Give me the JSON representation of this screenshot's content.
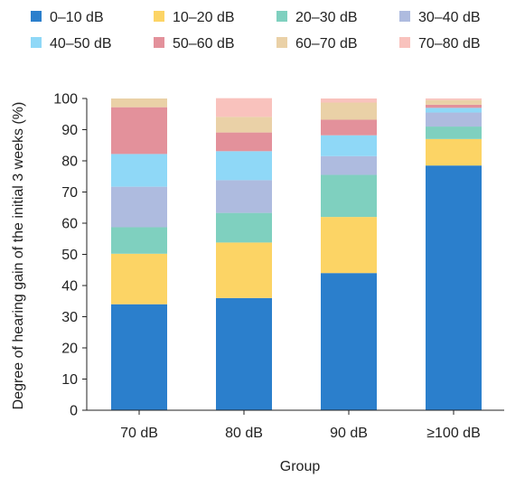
{
  "chart_data": {
    "type": "bar",
    "stacked": true,
    "categories": [
      "70 dB",
      "80 dB",
      "90 dB",
      "≥100 dB"
    ],
    "series": [
      {
        "name": "0–10 dB",
        "color": "#2b7fcc",
        "values": [
          34,
          36,
          44,
          78.5
        ]
      },
      {
        "name": "10–20 dB",
        "color": "#fcd465",
        "values": [
          16.2,
          17.8,
          18,
          8.5
        ]
      },
      {
        "name": "20–30 dB",
        "color": "#7fd0bf",
        "values": [
          8.5,
          9.5,
          13.5,
          4
        ]
      },
      {
        "name": "30–40 dB",
        "color": "#aebbdf",
        "values": [
          13,
          10.5,
          6,
          4.5
        ]
      },
      {
        "name": "40–50 dB",
        "color": "#8fd8f7",
        "values": [
          10.5,
          9.3,
          6.7,
          1.5
        ]
      },
      {
        "name": "50–60 dB",
        "color": "#e3919b",
        "values": [
          15,
          6,
          5,
          1
        ]
      },
      {
        "name": "60–70 dB",
        "color": "#ead1a7",
        "values": [
          2.8,
          5,
          5.5,
          1.5
        ]
      },
      {
        "name": "70–80 dB",
        "color": "#f9c2bd",
        "values": [
          0,
          6,
          1.3,
          0.5
        ]
      }
    ],
    "title": "",
    "xlabel": "Group",
    "ylabel": "Degree of hearing gain of the initial 3 weeks (%)",
    "ylim": [
      0,
      100
    ],
    "yticks": [
      0,
      10,
      20,
      30,
      40,
      50,
      60,
      70,
      80,
      90,
      100
    ],
    "grid": false,
    "legend_position": "top"
  }
}
